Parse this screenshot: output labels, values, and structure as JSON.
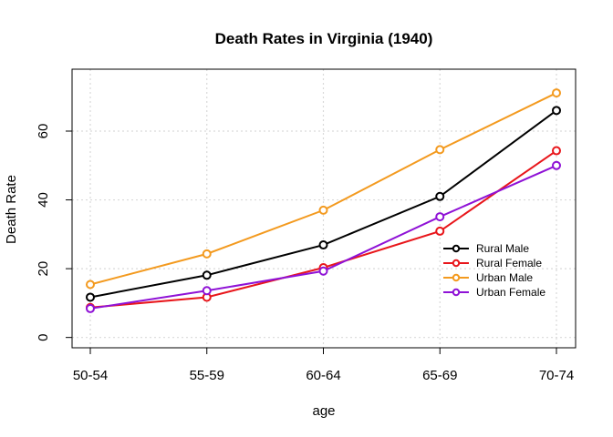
{
  "chart_data": {
    "type": "line",
    "title": "Death Rates in Virginia (1940)",
    "xlabel": "age",
    "ylabel": "Death Rate",
    "categories": [
      "50-54",
      "55-59",
      "60-64",
      "65-69",
      "70-74"
    ],
    "y_ticks": [
      0,
      20,
      40,
      60
    ],
    "ylim": [
      -3,
      78
    ],
    "grid": true,
    "legend_position": "right",
    "series": [
      {
        "name": "Rural Male",
        "color": "#000000",
        "values": [
          11.7,
          18.1,
          26.9,
          41.0,
          66.0
        ]
      },
      {
        "name": "Rural Female",
        "color": "#e8161b",
        "values": [
          8.7,
          11.7,
          20.3,
          30.9,
          54.3
        ]
      },
      {
        "name": "Urban Male",
        "color": "#f39a1f",
        "values": [
          15.4,
          24.3,
          37.0,
          54.6,
          71.1
        ]
      },
      {
        "name": "Urban Female",
        "color": "#8f12d6",
        "values": [
          8.4,
          13.6,
          19.3,
          35.1,
          50.0
        ]
      }
    ]
  }
}
